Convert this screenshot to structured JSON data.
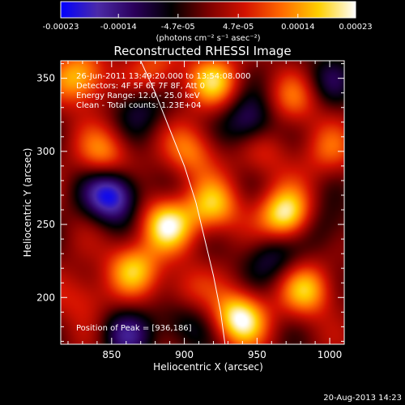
{
  "chart_data": {
    "type": "heatmap",
    "title": "Reconstructed RHESSI Image",
    "xlabel": "Heliocentric X (arcsec)",
    "ylabel": "Heliocentric Y (arcsec)",
    "xlim": [
      815,
      1010
    ],
    "ylim": [
      168,
      362
    ],
    "xticks": [
      850,
      900,
      950,
      1000
    ],
    "xtick_labels": [
      "850",
      "900",
      "950",
      "1000"
    ],
    "yticks": [
      200,
      250,
      300,
      350
    ],
    "ytick_labels": [
      "200",
      "250",
      "300",
      "350"
    ],
    "colorbar": {
      "min": -0.00023,
      "max": 0.00023,
      "ticks": [
        -0.00023,
        -0.00014,
        -4.7e-05,
        4.7e-05,
        0.00014,
        0.00023
      ],
      "tick_labels": [
        "-0.00023",
        "-0.00014",
        "-4.7e-05",
        "4.7e-05",
        "0.00014",
        "0.00023"
      ],
      "unit_label": "(photons cm⁻² s⁻¹ asec⁻²)",
      "colors": [
        "#0000ff",
        "#4b2aa8",
        "#2a005a",
        "#000000",
        "#7a0000",
        "#d41200",
        "#ff6a00",
        "#ffd000",
        "#ffffff"
      ]
    },
    "annotations": [
      "26-Jun-2011 13:49:20.000 to 13:54:08.000",
      "Detectors: 4F 5F 6F 7F 8F, Att 0",
      "Energy Range: 12.0 - 25.0 keV",
      "Clean - Total counts: 1.23E+04"
    ],
    "peak_label": "Position of Peak = [936,186]",
    "peak": [
      936,
      186
    ],
    "limb_curve": [
      [
        870,
        362
      ],
      [
        880,
        340
      ],
      [
        890,
        315
      ],
      [
        900,
        290
      ],
      [
        908,
        265
      ],
      [
        914,
        240
      ],
      [
        920,
        215
      ],
      [
        925,
        190
      ],
      [
        928,
        168
      ]
    ],
    "sources": [
      {
        "x": 970,
        "y": 256,
        "value": 0.00023
      },
      {
        "x": 938,
        "y": 186,
        "value": 0.00023
      },
      {
        "x": 888,
        "y": 250,
        "value": 0.0002
      },
      {
        "x": 920,
        "y": 262,
        "value": 0.00016
      },
      {
        "x": 828,
        "y": 350,
        "value": 0.00018
      },
      {
        "x": 920,
        "y": 348,
        "value": 0.00016
      },
      {
        "x": 865,
        "y": 220,
        "value": 0.00016
      },
      {
        "x": 985,
        "y": 205,
        "value": 0.00016
      },
      {
        "x": 845,
        "y": 298,
        "value": 0.00013
      },
      {
        "x": 905,
        "y": 300,
        "value": 0.00012
      },
      {
        "x": 975,
        "y": 335,
        "value": 0.0001
      },
      {
        "x": 1000,
        "y": 300,
        "value": 9e-05
      },
      {
        "x": 900,
        "y": 205,
        "value": 8e-05
      },
      {
        "x": 830,
        "y": 200,
        "value": 8e-05
      },
      {
        "x": 880,
        "y": 355,
        "value": 0.0001
      },
      {
        "x": 955,
        "y": 300,
        "value": 7e-05
      },
      {
        "x": 850,
        "y": 270,
        "value": -0.00023
      },
      {
        "x": 945,
        "y": 320,
        "value": -0.00014
      },
      {
        "x": 860,
        "y": 175,
        "value": -0.00012
      },
      {
        "x": 960,
        "y": 228,
        "value": -0.0001
      },
      {
        "x": 995,
        "y": 248,
        "value": -8e-05
      },
      {
        "x": 900,
        "y": 182,
        "value": -9e-05
      },
      {
        "x": 870,
        "y": 330,
        "value": -9e-05
      },
      {
        "x": 1000,
        "y": 350,
        "value": -8e-05
      }
    ]
  },
  "footer": {
    "timestamp": "20-Aug-2013 14:23"
  }
}
